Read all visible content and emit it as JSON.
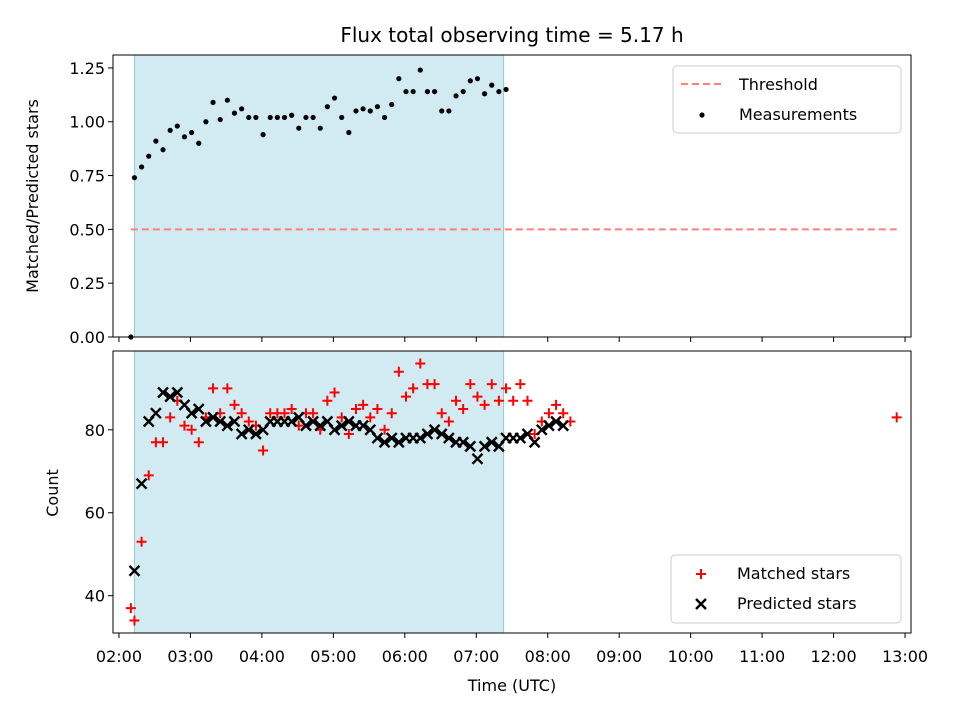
{
  "chart_data": [
    {
      "type": "scatter",
      "panel": "top",
      "title": "Flux total observing time = 5.17 h",
      "xlabel": "",
      "ylabel": "Matched/Predicted stars",
      "xlim": [
        "01:55",
        "13:05"
      ],
      "ylim": [
        0,
        1.31
      ],
      "ytick_labels": [
        "0.00",
        "0.25",
        "0.50",
        "0.75",
        "1.00",
        "1.25"
      ],
      "shaded_span": [
        "02:13",
        "07:23"
      ],
      "shaded_color": "#add8e6",
      "threshold": {
        "name": "Threshold",
        "y": 0.5,
        "x_range": [
          "02:10",
          "12:53"
        ],
        "color": "#ff7f7f",
        "style": "dashed"
      },
      "series": [
        {
          "name": "Measurements",
          "marker": "dot",
          "color": "#000000",
          "points": [
            [
              "02:10",
              0.0
            ],
            [
              "02:13",
              0.74
            ],
            [
              "02:19",
              0.79
            ],
            [
              "02:25",
              0.84
            ],
            [
              "02:31",
              0.91
            ],
            [
              "02:37",
              0.87
            ],
            [
              "02:43",
              0.96
            ],
            [
              "02:49",
              0.98
            ],
            [
              "02:55",
              0.93
            ],
            [
              "03:01",
              0.95
            ],
            [
              "03:07",
              0.9
            ],
            [
              "03:13",
              1.0
            ],
            [
              "03:19",
              1.09
            ],
            [
              "03:25",
              1.01
            ],
            [
              "03:31",
              1.1
            ],
            [
              "03:37",
              1.04
            ],
            [
              "03:43",
              1.06
            ],
            [
              "03:49",
              1.02
            ],
            [
              "03:55",
              1.02
            ],
            [
              "04:01",
              0.94
            ],
            [
              "04:07",
              1.02
            ],
            [
              "04:13",
              1.02
            ],
            [
              "04:19",
              1.02
            ],
            [
              "04:25",
              1.03
            ],
            [
              "04:31",
              0.97
            ],
            [
              "04:37",
              1.02
            ],
            [
              "04:43",
              1.02
            ],
            [
              "04:49",
              0.97
            ],
            [
              "04:55",
              1.07
            ],
            [
              "05:01",
              1.11
            ],
            [
              "05:07",
              1.02
            ],
            [
              "05:13",
              0.95
            ],
            [
              "05:19",
              1.05
            ],
            [
              "05:25",
              1.06
            ],
            [
              "05:31",
              1.05
            ],
            [
              "05:37",
              1.07
            ],
            [
              "05:43",
              1.02
            ],
            [
              "05:49",
              1.08
            ],
            [
              "05:55",
              1.2
            ],
            [
              "06:01",
              1.14
            ],
            [
              "06:07",
              1.14
            ],
            [
              "06:13",
              1.24
            ],
            [
              "06:19",
              1.14
            ],
            [
              "06:25",
              1.14
            ],
            [
              "06:31",
              1.05
            ],
            [
              "06:37",
              1.05
            ],
            [
              "06:43",
              1.12
            ],
            [
              "06:49",
              1.14
            ],
            [
              "06:55",
              1.19
            ],
            [
              "07:01",
              1.2
            ],
            [
              "07:07",
              1.13
            ],
            [
              "07:13",
              1.17
            ],
            [
              "07:19",
              1.14
            ],
            [
              "07:25",
              1.15
            ]
          ]
        }
      ],
      "legend_position": "top-right"
    },
    {
      "type": "scatter",
      "panel": "bottom",
      "title": "",
      "xlabel": "Time (UTC)",
      "ylabel": "Count",
      "xlim": [
        "01:55",
        "13:05"
      ],
      "ylim": [
        31,
        99
      ],
      "ytick_labels": [
        "40",
        "60",
        "80"
      ],
      "xtick_labels": [
        "02:00",
        "03:00",
        "04:00",
        "05:00",
        "06:00",
        "07:00",
        "08:00",
        "09:00",
        "10:00",
        "11:00",
        "12:00",
        "13:00"
      ],
      "shaded_span": [
        "02:13",
        "07:23"
      ],
      "series": [
        {
          "name": "Matched stars",
          "marker": "plus",
          "color": "#ff0000",
          "points": [
            [
              "02:10",
              37
            ],
            [
              "02:13",
              34
            ],
            [
              "02:19",
              53
            ],
            [
              "02:25",
              69
            ],
            [
              "02:31",
              77
            ],
            [
              "02:37",
              77
            ],
            [
              "02:43",
              83
            ],
            [
              "02:49",
              87
            ],
            [
              "02:55",
              81
            ],
            [
              "03:01",
              80
            ],
            [
              "03:07",
              77
            ],
            [
              "03:13",
              83
            ],
            [
              "03:19",
              90
            ],
            [
              "03:25",
              84
            ],
            [
              "03:31",
              90
            ],
            [
              "03:37",
              86
            ],
            [
              "03:43",
              84
            ],
            [
              "03:49",
              82
            ],
            [
              "03:55",
              81
            ],
            [
              "04:01",
              75
            ],
            [
              "04:07",
              84
            ],
            [
              "04:13",
              84
            ],
            [
              "04:19",
              84
            ],
            [
              "04:25",
              85
            ],
            [
              "04:31",
              81
            ],
            [
              "04:37",
              84
            ],
            [
              "04:43",
              84
            ],
            [
              "04:49",
              80
            ],
            [
              "04:55",
              87
            ],
            [
              "05:01",
              89
            ],
            [
              "05:07",
              83
            ],
            [
              "05:13",
              79
            ],
            [
              "05:19",
              85
            ],
            [
              "05:25",
              86
            ],
            [
              "05:31",
              83
            ],
            [
              "05:37",
              85
            ],
            [
              "05:43",
              80
            ],
            [
              "05:49",
              84
            ],
            [
              "05:55",
              94
            ],
            [
              "06:01",
              88
            ],
            [
              "06:07",
              90
            ],
            [
              "06:13",
              96
            ],
            [
              "06:19",
              91
            ],
            [
              "06:25",
              91
            ],
            [
              "06:31",
              84
            ],
            [
              "06:37",
              82
            ],
            [
              "06:43",
              87
            ],
            [
              "06:49",
              85
            ],
            [
              "06:55",
              91
            ],
            [
              "07:01",
              88
            ],
            [
              "07:07",
              86
            ],
            [
              "07:13",
              91
            ],
            [
              "07:19",
              87
            ],
            [
              "07:25",
              90
            ],
            [
              "07:31",
              87
            ],
            [
              "07:37",
              91
            ],
            [
              "07:43",
              87
            ],
            [
              "07:49",
              79
            ],
            [
              "07:55",
              82
            ],
            [
              "08:01",
              84
            ],
            [
              "08:07",
              86
            ],
            [
              "08:13",
              84
            ],
            [
              "08:19",
              82
            ],
            [
              "12:53",
              83
            ]
          ]
        },
        {
          "name": "Predicted stars",
          "marker": "x",
          "color": "#000000",
          "points": [
            [
              "02:13",
              46
            ],
            [
              "02:19",
              67
            ],
            [
              "02:25",
              82
            ],
            [
              "02:31",
              84
            ],
            [
              "02:37",
              89
            ],
            [
              "02:43",
              88
            ],
            [
              "02:49",
              89
            ],
            [
              "02:55",
              86
            ],
            [
              "03:01",
              84
            ],
            [
              "03:07",
              85
            ],
            [
              "03:13",
              82
            ],
            [
              "03:19",
              83
            ],
            [
              "03:25",
              82
            ],
            [
              "03:31",
              81
            ],
            [
              "03:37",
              82
            ],
            [
              "03:43",
              79
            ],
            [
              "03:49",
              80
            ],
            [
              "03:55",
              79
            ],
            [
              "04:01",
              80
            ],
            [
              "04:07",
              82
            ],
            [
              "04:13",
              82
            ],
            [
              "04:19",
              82
            ],
            [
              "04:25",
              82
            ],
            [
              "04:31",
              83
            ],
            [
              "04:37",
              81
            ],
            [
              "04:43",
              82
            ],
            [
              "04:49",
              81
            ],
            [
              "04:55",
              82
            ],
            [
              "05:01",
              80
            ],
            [
              "05:07",
              81
            ],
            [
              "05:13",
              82
            ],
            [
              "05:19",
              81
            ],
            [
              "05:25",
              81
            ],
            [
              "05:31",
              80
            ],
            [
              "05:37",
              78
            ],
            [
              "05:43",
              77
            ],
            [
              "05:49",
              78
            ],
            [
              "05:55",
              77
            ],
            [
              "06:01",
              78
            ],
            [
              "06:07",
              78
            ],
            [
              "06:13",
              78
            ],
            [
              "06:19",
              79
            ],
            [
              "06:25",
              80
            ],
            [
              "06:31",
              79
            ],
            [
              "06:37",
              78
            ],
            [
              "06:43",
              77
            ],
            [
              "06:49",
              77
            ],
            [
              "06:55",
              76
            ],
            [
              "07:01",
              73
            ],
            [
              "07:07",
              76
            ],
            [
              "07:13",
              77
            ],
            [
              "07:19",
              76
            ],
            [
              "07:25",
              78
            ],
            [
              "07:31",
              78
            ],
            [
              "07:37",
              78
            ],
            [
              "07:43",
              79
            ],
            [
              "07:49",
              77
            ],
            [
              "07:55",
              80
            ],
            [
              "08:01",
              81
            ],
            [
              "08:07",
              82
            ],
            [
              "08:13",
              81
            ]
          ]
        }
      ],
      "legend_position": "bottom-right"
    }
  ]
}
